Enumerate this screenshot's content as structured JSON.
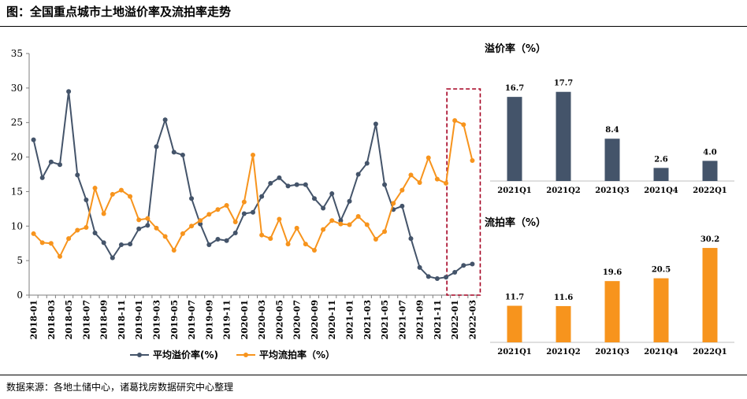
{
  "title": "图：全国重点城市土地溢价率及流拍率走势",
  "source": "数据来源：各地土储中心，诸葛找房数据研究中心整理",
  "colors": {
    "premium": "#44546A",
    "failed": "#F7941D",
    "highlight_box": "#A50021"
  },
  "chart_data": [
    {
      "type": "line",
      "ylim": [
        0,
        35
      ],
      "yticks": [
        0,
        5,
        10,
        15,
        20,
        25,
        30,
        35
      ],
      "x": [
        "2018-01",
        "2018-02",
        "2018-03",
        "2018-04",
        "2018-05",
        "2018-06",
        "2018-07",
        "2018-08",
        "2018-09",
        "2018-10",
        "2018-11",
        "2018-12",
        "2019-01",
        "2019-02",
        "2019-03",
        "2019-04",
        "2019-05",
        "2019-06",
        "2019-07",
        "2019-08",
        "2019-09",
        "2019-10",
        "2019-11",
        "2019-12",
        "2020-01",
        "2020-02",
        "2020-03",
        "2020-04",
        "2020-05",
        "2020-06",
        "2020-07",
        "2020-08",
        "2020-09",
        "2020-10",
        "2020-11",
        "2020-12",
        "2021-01",
        "2021-02",
        "2021-03",
        "2021-04",
        "2021-05",
        "2021-06",
        "2021-07",
        "2021-08",
        "2021-09",
        "2021-10",
        "2021-11",
        "2021-12",
        "2022-01",
        "2022-02",
        "2022-03"
      ],
      "xtick_labels": [
        "2018-01",
        "2018-03",
        "2018-05",
        "2018-07",
        "2018-09",
        "2018-11",
        "2019-01",
        "2019-03",
        "2019-05",
        "2019-07",
        "2019-09",
        "2019-11",
        "2020-01",
        "2020-03",
        "2020-05",
        "2020-07",
        "2020-09",
        "2020-11",
        "2021-01",
        "2021-03",
        "2021-05",
        "2021-07",
        "2021-09",
        "2021-11",
        "2022-01",
        "2022-03"
      ],
      "legend_position": "bottom",
      "highlight_range": [
        "2022-01",
        "2022-03"
      ],
      "series": [
        {
          "name": "平均溢价率(%)",
          "color": "#44546A",
          "values": [
            22.5,
            17.0,
            19.3,
            18.9,
            29.5,
            17.4,
            13.8,
            9.0,
            7.6,
            5.4,
            7.3,
            7.4,
            9.6,
            10.1,
            21.5,
            25.4,
            20.7,
            20.3,
            14.0,
            10.3,
            7.3,
            8.1,
            7.9,
            9.0,
            11.8,
            12.0,
            14.3,
            16.2,
            17.0,
            15.8,
            16.0,
            16.0,
            14.0,
            12.6,
            14.7,
            10.8,
            13.6,
            17.5,
            19.1,
            24.8,
            16.0,
            12.4,
            12.9,
            8.2,
            4.0,
            2.7,
            2.4,
            2.6,
            3.3,
            4.3,
            4.5
          ]
        },
        {
          "name": "平均流拍率（%）",
          "color": "#F7941D",
          "values": [
            8.9,
            7.6,
            7.5,
            5.6,
            8.2,
            9.4,
            9.8,
            15.5,
            11.8,
            14.6,
            15.2,
            14.3,
            10.9,
            11.1,
            9.7,
            8.5,
            6.5,
            8.9,
            10.0,
            10.8,
            11.7,
            12.4,
            13.0,
            10.6,
            13.5,
            20.3,
            8.7,
            8.2,
            11.0,
            7.4,
            9.7,
            7.4,
            6.5,
            9.5,
            10.8,
            10.3,
            10.2,
            11.4,
            10.2,
            8.1,
            9.2,
            13.3,
            15.2,
            17.4,
            16.3,
            19.9,
            16.8,
            16.2,
            25.3,
            24.7,
            19.5
          ]
        }
      ]
    },
    {
      "type": "bar",
      "title": "溢价率（%）",
      "categories": [
        "2021Q1",
        "2021Q2",
        "2021Q3",
        "2021Q4",
        "2022Q1"
      ],
      "values": [
        16.7,
        17.7,
        8.4,
        2.6,
        4.0
      ],
      "value_labels": [
        "16.7",
        "17.7",
        "8.4",
        "2.6",
        "4.0"
      ],
      "color": "#44546A",
      "ylim": [
        0,
        20
      ]
    },
    {
      "type": "bar",
      "title": "流拍率（%）",
      "categories": [
        "2021Q1",
        "2021Q2",
        "2021Q3",
        "2021Q4",
        "2022Q1"
      ],
      "values": [
        11.7,
        11.6,
        19.6,
        20.5,
        30.2
      ],
      "value_labels": [
        "11.7",
        "11.6",
        "19.6",
        "20.5",
        "30.2"
      ],
      "color": "#F7941D",
      "ylim": [
        0,
        35
      ]
    }
  ]
}
